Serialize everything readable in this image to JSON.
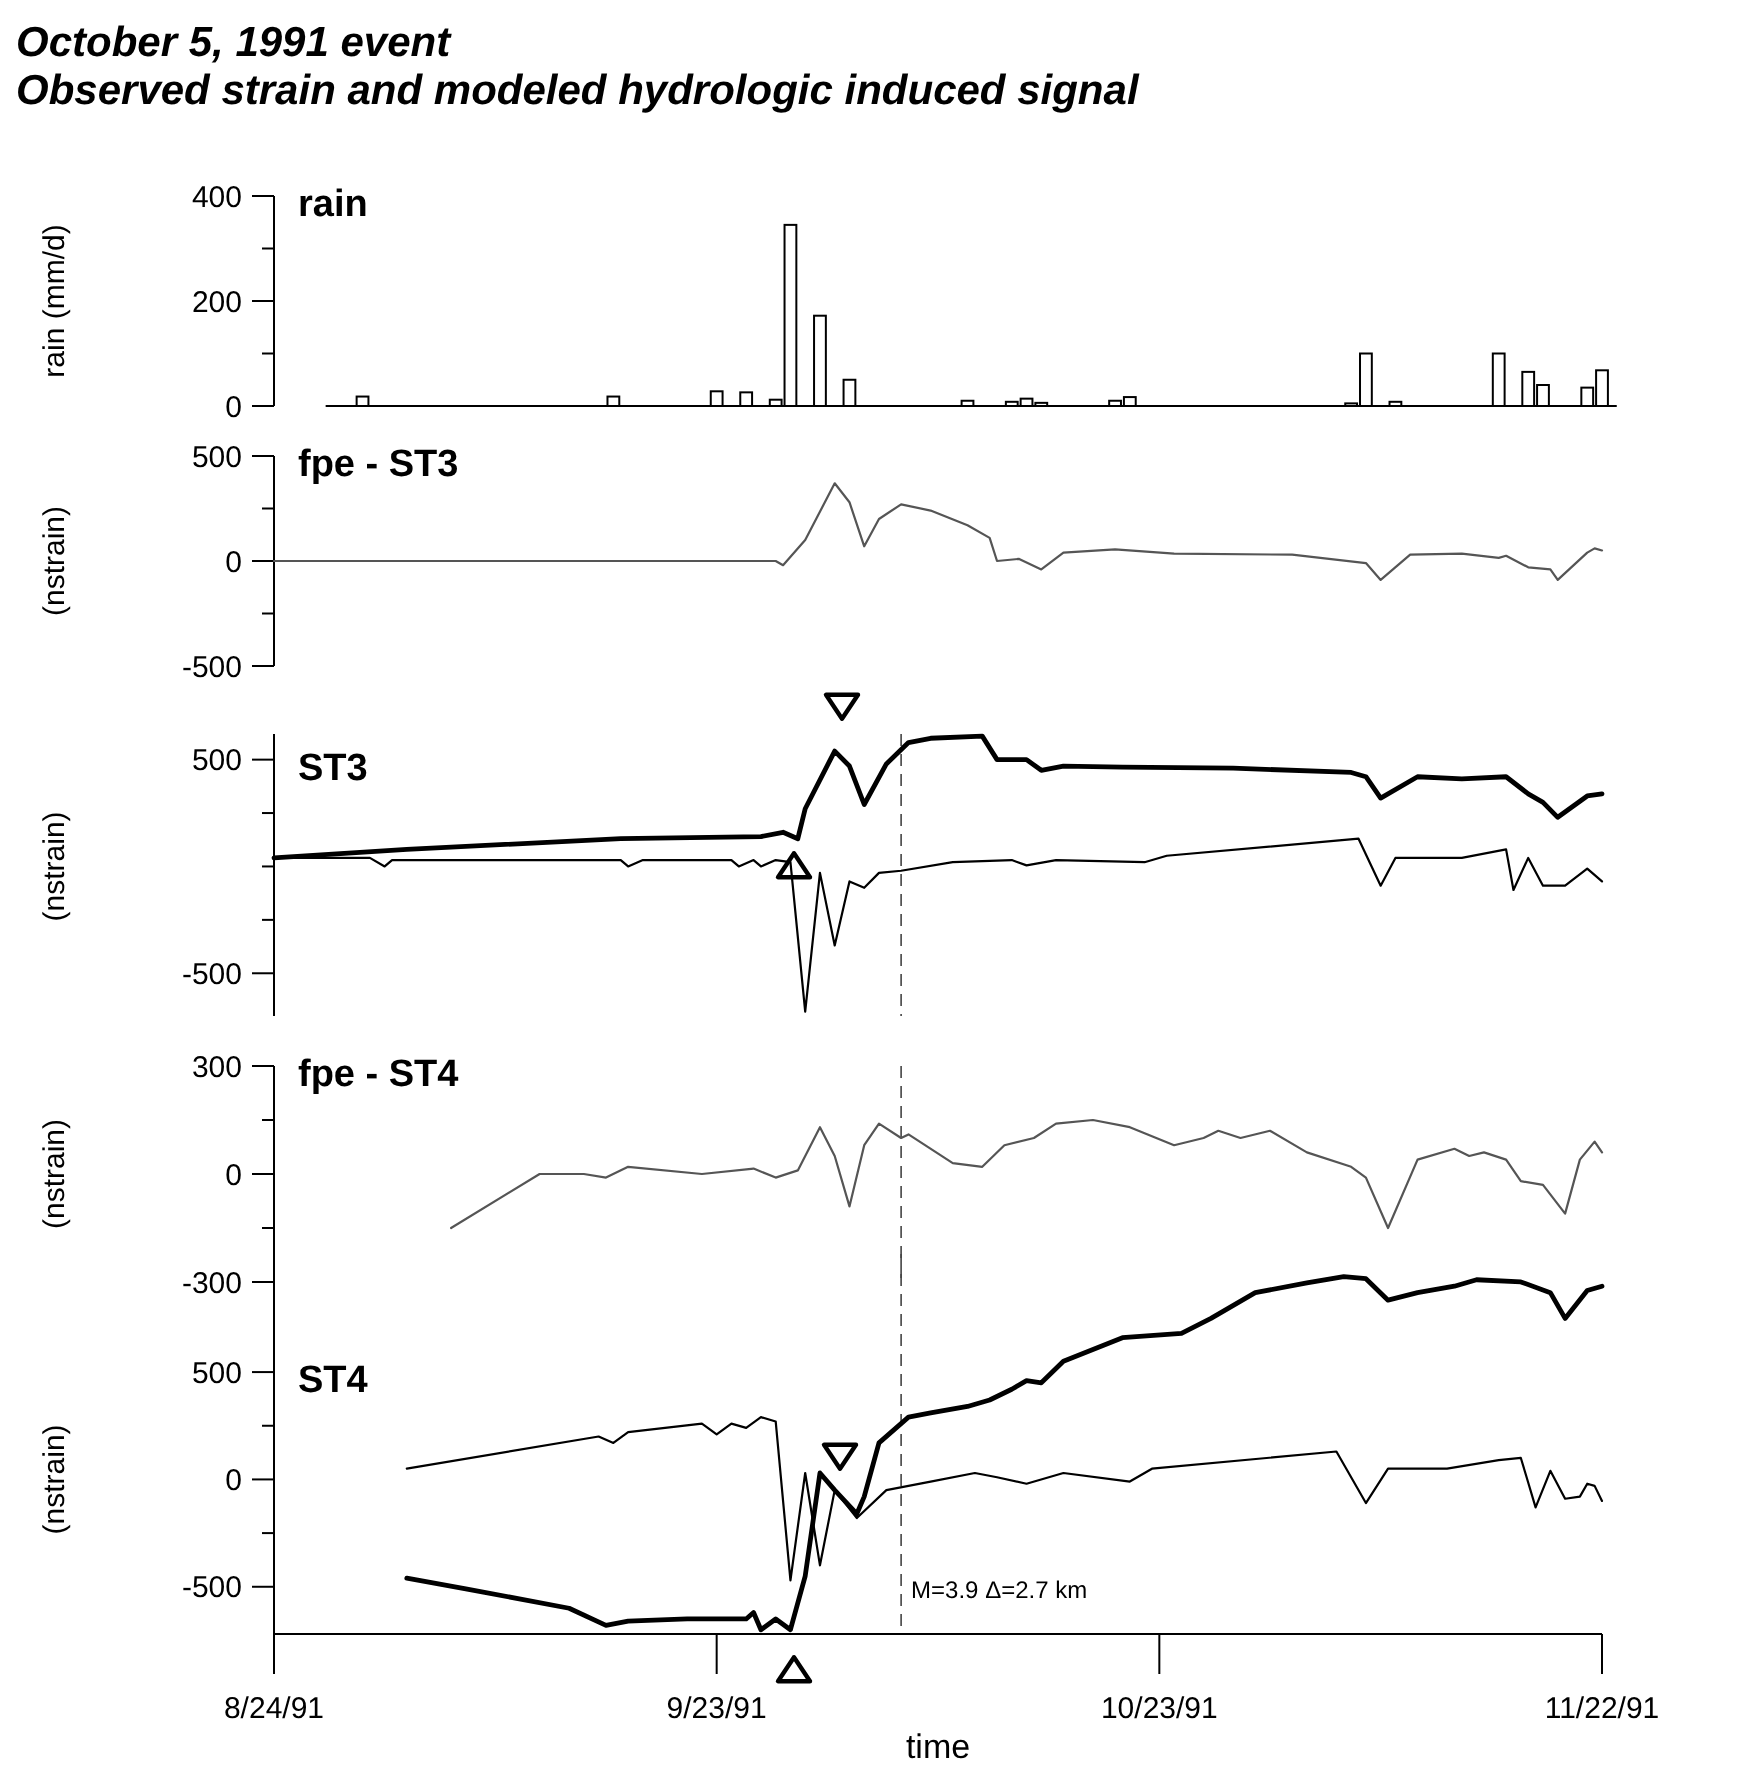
{
  "chart_data": [
    {
      "type": "bar",
      "title": "October 5, 1991 event",
      "subtitle": "Observed strain and modeled hydrologic induced signal",
      "ylabel": "rain (mm/d)",
      "annotations": [
        "rain"
      ],
      "tick_labels": "y",
      "xlim": [
        "1991-08-24",
        "1991-11-22"
      ],
      "ylim": [
        0,
        400
      ],
      "yticks": [
        0,
        {
          "value": 100,
          "label": null
        },
        200,
        {
          "value": 300,
          "label": null
        },
        400
      ],
      "series": [
        {
          "color": "#ffffff",
          "x": [
            "1991-08-30",
            "1991-09-16",
            "1991-09-23",
            "1991-09-25",
            "1991-09-27",
            "1991-09-28",
            "1991-09-30",
            "1991-10-02",
            "1991-10-10",
            "1991-10-13",
            "1991-10-14",
            "1991-10-15",
            "1991-10-20",
            "1991-10-21",
            "1991-11-05",
            "1991-11-06",
            "1991-11-08",
            "1991-11-15",
            "1991-11-17",
            "1991-11-18",
            "1991-11-21",
            "1991-11-22"
          ],
          "values": [
            18,
            18,
            28,
            26,
            12,
            345,
            172,
            50,
            10,
            8,
            14,
            6,
            10,
            17,
            5,
            100,
            8,
            100,
            65,
            40,
            35,
            68
          ]
        }
      ]
    },
    {
      "type": "line",
      "ylabel": "(nstrain)",
      "annotations": [
        "fpe - ST3"
      ],
      "tick_labels": "y",
      "xlim": [
        "1991-08-24",
        "1991-11-22"
      ],
      "ylim": [
        -500,
        500
      ],
      "yticks": [
        -500,
        {
          "value": -250,
          "label": null
        },
        0,
        {
          "value": 250,
          "label": null
        },
        500
      ],
      "series": [
        {
          "color": "#555555",
          "x": [
            "1991-08-24",
            "1991-09-15T12:00",
            "1991-09-27",
            "1991-09-27T12:00",
            "1991-09-29",
            "1991-10-01",
            "1991-10-02",
            "1991-10-03",
            "1991-10-04",
            "1991-10-05T12:00",
            "1991-10-07T12:00",
            "1991-10-10",
            "1991-10-11T12:00",
            "1991-10-12",
            "1991-10-13T12:00",
            "1991-10-15",
            "1991-10-16T12:00",
            "1991-10-20",
            "1991-10-24",
            "1991-11-01",
            "1991-11-06",
            "1991-11-07",
            "1991-11-09",
            "1991-11-12T12:00",
            "1991-11-15",
            "1991-11-15T12:00",
            "1991-11-17",
            "1991-11-18T12:00",
            "1991-11-19",
            "1991-11-21",
            "1991-11-21T12:00",
            "1991-11-22"
          ],
          "values": [
            0,
            0,
            0,
            -20,
            100,
            370,
            280,
            70,
            200,
            270,
            240,
            170,
            110,
            0,
            10,
            -40,
            40,
            55,
            35,
            30,
            -10,
            -90,
            30,
            35,
            15,
            25,
            -30,
            -40,
            -90,
            40,
            60,
            50
          ]
        }
      ]
    },
    {
      "type": "line",
      "ylabel": "(nstrain)",
      "annotations": [
        "ST3"
      ],
      "tick_labels": "y",
      "xlim": [
        "1991-08-24",
        "1991-11-22"
      ],
      "ylim": [
        -700,
        620
      ],
      "yticks": [
        -500,
        {
          "value": -250,
          "label": null
        },
        {
          "value": 0,
          "label": null
        },
        {
          "value": 250,
          "label": null
        },
        500
      ],
      "ref_lines": [
        {
          "axis": "x",
          "value": "1991-10-05T12:00",
          "line_style": "dashed"
        }
      ],
      "series": [
        {
          "color": "#000000",
          "x": [
            "1991-08-24",
            "1991-09-02",
            "1991-09-16T12:00",
            "1991-09-26",
            "1991-09-27T12:00",
            "1991-09-28T12:00",
            "1991-09-29",
            "1991-10-01",
            "1991-10-02",
            "1991-10-03",
            "1991-10-04T12:00",
            "1991-10-06",
            "1991-10-07T12:00",
            "1991-10-11",
            "1991-10-12",
            "1991-10-14",
            "1991-10-15",
            "1991-10-16T12:00",
            "1991-10-20T12:00",
            "1991-10-28",
            "1991-11-05",
            "1991-11-06",
            "1991-11-07",
            "1991-11-09T12:00",
            "1991-11-12T12:00",
            "1991-11-15T12:00",
            "1991-11-17",
            "1991-11-18",
            "1991-11-19",
            "1991-11-21",
            "1991-11-22"
          ],
          "values": [
            40,
            80,
            130,
            140,
            160,
            130,
            270,
            540,
            470,
            290,
            480,
            580,
            600,
            610,
            500,
            500,
            450,
            470,
            465,
            460,
            440,
            420,
            320,
            420,
            410,
            420,
            340,
            300,
            230,
            330,
            340
          ]
        },
        {
          "color": "#000000",
          "x": [
            "1991-08-24",
            "1991-08-30T12:00",
            "1991-08-31T12:00",
            "1991-09-01",
            "1991-09-16T12:00",
            "1991-09-17",
            "1991-09-18",
            "1991-09-24",
            "1991-09-24T12:00",
            "1991-09-25T12:00",
            "1991-09-26",
            "1991-09-27",
            "1991-09-28",
            "1991-09-29",
            "1991-09-30",
            "1991-10-01",
            "1991-10-02",
            "1991-10-03",
            "1991-10-04",
            "1991-10-05T12:00",
            "1991-10-09",
            "1991-10-13",
            "1991-10-14",
            "1991-10-16",
            "1991-10-22",
            "1991-10-23T12:00",
            "1991-11-05T12:00",
            "1991-11-07",
            "1991-11-08",
            "1991-11-12T12:00",
            "1991-11-15T12:00",
            "1991-11-16",
            "1991-11-17",
            "1991-11-18",
            "1991-11-19T12:00",
            "1991-11-21",
            "1991-11-22"
          ],
          "values": [
            40,
            40,
            0,
            30,
            30,
            0,
            30,
            30,
            0,
            30,
            0,
            30,
            20,
            -680,
            -30,
            -370,
            -70,
            -100,
            -30,
            -20,
            20,
            30,
            5,
            30,
            20,
            50,
            130,
            -90,
            40,
            40,
            80,
            -110,
            40,
            -90,
            -90,
            -10,
            -70
          ]
        }
      ]
    },
    {
      "type": "line",
      "ylabel": "(nstrain)",
      "annotations": [
        "fpe - ST4"
      ],
      "tick_labels": "y",
      "xlim": [
        "1991-08-24",
        "1991-11-22"
      ],
      "ylim": [
        -300,
        300
      ],
      "yticks": [
        -300,
        {
          "value": -150,
          "label": null
        },
        0,
        {
          "value": 150,
          "label": null
        },
        300
      ],
      "ref_lines": [
        {
          "axis": "x",
          "value": "1991-10-05T12:00",
          "line_style": "dashed"
        }
      ],
      "series": [
        {
          "color": "#555555",
          "x": [
            "1991-09-05",
            "1991-09-11",
            "1991-09-14",
            "1991-09-15T12:00",
            "1991-09-17",
            "1991-09-22",
            "1991-09-25T12:00",
            "1991-09-27",
            "1991-09-28T12:00",
            "1991-09-30",
            "1991-10-01",
            "1991-10-02",
            "1991-10-03",
            "1991-10-04",
            "1991-10-05T12:00",
            "1991-10-06",
            "1991-10-09",
            "1991-10-11",
            "1991-10-12T12:00",
            "1991-10-14T12:00",
            "1991-10-16",
            "1991-10-18T12:00",
            "1991-10-21",
            "1991-10-24",
            "1991-10-26",
            "1991-10-27",
            "1991-10-28T12:00",
            "1991-10-30T12:00",
            "1991-11-02",
            "1991-11-05",
            "1991-11-06",
            "1991-11-07T12:00",
            "1991-11-09T12:00",
            "1991-11-12",
            "1991-11-13",
            "1991-11-14",
            "1991-11-15T12:00",
            "1991-11-16T12:00",
            "1991-11-18",
            "1991-11-19T12:00",
            "1991-11-20T12:00",
            "1991-11-21T12:00",
            "1991-11-22"
          ],
          "values": [
            -150,
            0,
            0,
            -10,
            20,
            0,
            15,
            -10,
            10,
            130,
            50,
            -90,
            80,
            140,
            100,
            110,
            30,
            20,
            80,
            100,
            140,
            150,
            130,
            80,
            100,
            120,
            100,
            120,
            60,
            20,
            -10,
            -150,
            40,
            70,
            50,
            60,
            40,
            -20,
            -30,
            -110,
            40,
            90,
            60
          ]
        }
      ]
    },
    {
      "type": "line",
      "ylabel": "(nstrain)",
      "xlabel": "time",
      "annotations": [
        "ST4"
      ],
      "xlim": [
        "1991-08-24",
        "1991-11-22"
      ],
      "xticks": [
        {
          "value": "1991-08-24",
          "label": "8/24/91"
        },
        {
          "value": "1991-09-23",
          "label": "9/23/91"
        },
        {
          "value": "1991-10-23",
          "label": "10/23/91"
        },
        {
          "value": "1991-11-22",
          "label": "11/22/91"
        }
      ],
      "ylim": [
        -720,
        1050
      ],
      "yticks": [
        -500,
        {
          "value": -250,
          "label": null
        },
        0,
        {
          "value": 250,
          "label": null
        },
        500
      ],
      "ref_lines": [
        {
          "axis": "x",
          "value": "1991-10-05T12:00",
          "line_style": "dashed",
          "label": "M=3.9 Δ=2.7 km"
        }
      ],
      "series": [
        {
          "color": "#000000",
          "x": [
            "1991-09-02",
            "1991-09-06",
            "1991-09-13",
            "1991-09-15T12:00",
            "1991-09-17",
            "1991-09-21",
            "1991-09-25",
            "1991-09-25T12:00",
            "1991-09-26",
            "1991-09-27",
            "1991-09-28",
            "1991-09-29",
            "1991-09-30",
            "1991-10-01",
            "1991-10-02T12:00",
            "1991-10-03",
            "1991-10-04",
            "1991-10-06",
            "1991-10-07T12:00",
            "1991-10-10",
            "1991-10-11T12:00",
            "1991-10-13",
            "1991-10-14",
            "1991-10-15",
            "1991-10-16T12:00",
            "1991-10-20T12:00",
            "1991-10-24T12:00",
            "1991-10-26T12:00",
            "1991-10-29T12:00",
            "1991-11-02",
            "1991-11-04T12:00",
            "1991-11-06",
            "1991-11-07T12:00",
            "1991-11-09T12:00",
            "1991-11-12",
            "1991-11-13T12:00",
            "1991-11-16T12:00",
            "1991-11-18T12:00",
            "1991-11-19T12:00",
            "1991-11-21",
            "1991-11-22"
          ],
          "values": [
            -460,
            -510,
            -600,
            -680,
            -660,
            -650,
            -650,
            -620,
            -700,
            -650,
            -700,
            -450,
            30,
            -50,
            -160,
            -80,
            170,
            290,
            310,
            340,
            370,
            420,
            460,
            450,
            550,
            660,
            680,
            750,
            870,
            915,
            945,
            935,
            835,
            870,
            900,
            930,
            920,
            870,
            750,
            880,
            900
          ]
        },
        {
          "color": "#000000",
          "x": [
            "1991-09-02",
            "1991-09-15",
            "1991-09-16",
            "1991-09-17",
            "1991-09-22",
            "1991-09-23",
            "1991-09-24",
            "1991-09-25",
            "1991-09-26",
            "1991-09-27",
            "1991-09-28",
            "1991-09-29",
            "1991-09-30",
            "1991-10-01",
            "1991-10-02T12:00",
            "1991-10-04T12:00",
            "1991-10-07T12:00",
            "1991-10-10T12:00",
            "1991-10-12",
            "1991-10-14",
            "1991-10-16T12:00",
            "1991-10-21",
            "1991-10-22T12:00",
            "1991-11-04",
            "1991-11-06",
            "1991-11-07T12:00",
            "1991-11-11T12:00",
            "1991-11-15",
            "1991-11-16T12:00",
            "1991-11-17T12:00",
            "1991-11-18T12:00",
            "1991-11-19T12:00",
            "1991-11-20T12:00",
            "1991-11-21",
            "1991-11-21T12:00",
            "1991-11-22"
          ],
          "values": [
            50,
            200,
            170,
            220,
            260,
            210,
            260,
            240,
            290,
            270,
            -470,
            30,
            -400,
            -50,
            -180,
            -50,
            -10,
            30,
            10,
            -20,
            30,
            -10,
            50,
            130,
            -110,
            50,
            50,
            90,
            100,
            -130,
            40,
            -90,
            -80,
            -20,
            -30,
            -100
          ]
        }
      ]
    }
  ]
}
